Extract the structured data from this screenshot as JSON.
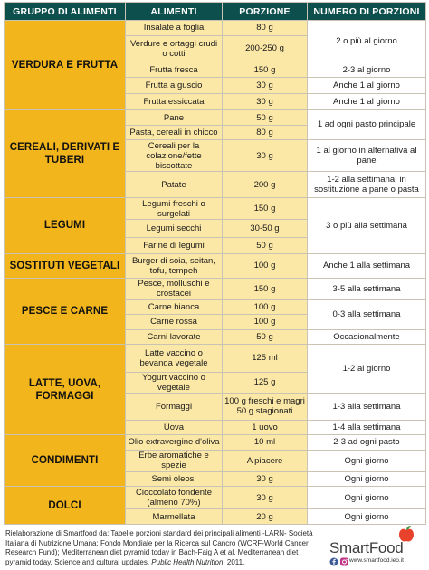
{
  "header": {
    "group": "GRUPPO DI ALIMENTI",
    "food": "ALIMENTI",
    "portion": "PORZIONE",
    "frequency": "NUMERO DI PORZIONI"
  },
  "groups": [
    {
      "name": "VERDURA E FRUTTA",
      "rows": [
        {
          "food": "Insalate a foglia",
          "portion": "80 g",
          "freq": "2 o più al giorno",
          "freq_span": 2
        },
        {
          "food": "Verdure e ortaggi crudi o cotti",
          "portion": "200-250 g"
        },
        {
          "food": "Frutta fresca",
          "portion": "150 g",
          "freq": "2-3 al giorno",
          "freq_span": 1
        },
        {
          "food": "Frutta a guscio",
          "portion": "30 g",
          "freq": "Anche 1 al giorno",
          "freq_span": 1
        },
        {
          "food": "Frutta essiccata",
          "portion": "30 g",
          "freq": "Anche 1 al giorno",
          "freq_span": 1
        }
      ]
    },
    {
      "name": "CEREALI, DERIVATI E TUBERI",
      "rows": [
        {
          "food": "Pane",
          "portion": "50 g",
          "freq": "1 ad ogni pasto principale",
          "freq_span": 2
        },
        {
          "food": "Pasta, cereali in chicco",
          "portion": "80 g"
        },
        {
          "food": "Cereali per la colazione/fette biscottate",
          "portion": "30 g",
          "freq": "1 al giorno in alternativa al pane",
          "freq_span": 1
        },
        {
          "food": "Patate",
          "portion": "200 g",
          "freq": "1-2 alla settimana, in sostituzione a pane o pasta",
          "freq_span": 1
        }
      ]
    },
    {
      "name": "LEGUMI",
      "rows": [
        {
          "food": "Legumi freschi o surgelati",
          "portion": "150 g",
          "freq": "3 o più alla settimana",
          "freq_span": 3
        },
        {
          "food": "Legumi secchi",
          "portion": "30-50 g"
        },
        {
          "food": "Farine di legumi",
          "portion": "50 g"
        }
      ]
    },
    {
      "name": "SOSTITUTI VEGETALI",
      "rows": [
        {
          "food": "Burger di soia, seitan, tofu, tempeh",
          "portion": "100 g",
          "freq": "Anche 1 alla settimana",
          "freq_span": 1
        }
      ]
    },
    {
      "name": "PESCE E CARNE",
      "rows": [
        {
          "food": "Pesce, molluschi e crostacei",
          "portion": "150 g",
          "freq": "3-5 alla settimana",
          "freq_span": 1
        },
        {
          "food": "Carne bianca",
          "portion": "100 g",
          "freq": "0-3 alla settimana",
          "freq_span": 2
        },
        {
          "food": "Carne rossa",
          "portion": "100 g"
        },
        {
          "food": "Carni lavorate",
          "portion": "50 g",
          "freq": "Occasionalmente",
          "freq_span": 1
        }
      ]
    },
    {
      "name": "LATTE, UOVA, FORMAGGI",
      "rows": [
        {
          "food": "Latte vaccino o bevanda vegetale",
          "portion": "125 ml",
          "freq": "1-2 al giorno",
          "freq_span": 2
        },
        {
          "food": "Yogurt vaccino o vegetale",
          "portion": "125 g"
        },
        {
          "food": "Formaggi",
          "portion": "100 g freschi e magri 50 g stagionati",
          "freq": "1-3 alla settimana",
          "freq_span": 1
        },
        {
          "food": "Uova",
          "portion": "1 uovo",
          "freq": "1-4 alla settimana",
          "freq_span": 1
        }
      ]
    },
    {
      "name": "CONDIMENTI",
      "rows": [
        {
          "food": "Olio extravergine d'oliva",
          "portion": "10 ml",
          "freq": "2-3 ad ogni pasto",
          "freq_span": 1
        },
        {
          "food": "Erbe aromatiche e spezie",
          "portion": "A piacere",
          "freq": "Ogni giorno",
          "freq_span": 1
        },
        {
          "food": "Semi oleosi",
          "portion": "30 g",
          "freq": "Ogni giorno",
          "freq_span": 1
        }
      ]
    },
    {
      "name": "DOLCI",
      "rows": [
        {
          "food": "Cioccolato fondente (almeno 70%)",
          "portion": "30 g",
          "freq": "Ogni giorno",
          "freq_span": 1
        },
        {
          "food": "Marmellata",
          "portion": "20 g",
          "freq": "Ogni giorno",
          "freq_span": 1
        }
      ]
    }
  ],
  "footer": {
    "text_main": "Rielaborazione di Smartfood da: Tabelle porzioni standard dei principali alimenti -LARN- Società Italiana di Nutrizione Umana; Fondo Mondiale per la Ricerca sul Cancro (WCRF-World Cancer Research Fund); Mediterranean diet pyramid today in Bach-Faig A et al. Mediterranean diet pyramid today. Science and cultural updates, ",
    "journal": "Public Health Nutrition",
    "year": ", 2011."
  },
  "logo": {
    "name": "SmartFood",
    "url": "www.smartfood.ieo.it",
    "social_icons": [
      "facebook-icon",
      "instagram-icon"
    ],
    "colors": {
      "apple": "#e8412c",
      "leaf": "#3a9a3a"
    }
  },
  "colors": {
    "header_bg": "#0c4f4d",
    "group_bg": "#f2b51c",
    "cell_bg": "#fbe7a6",
    "freq_bg": "#ffffff"
  }
}
